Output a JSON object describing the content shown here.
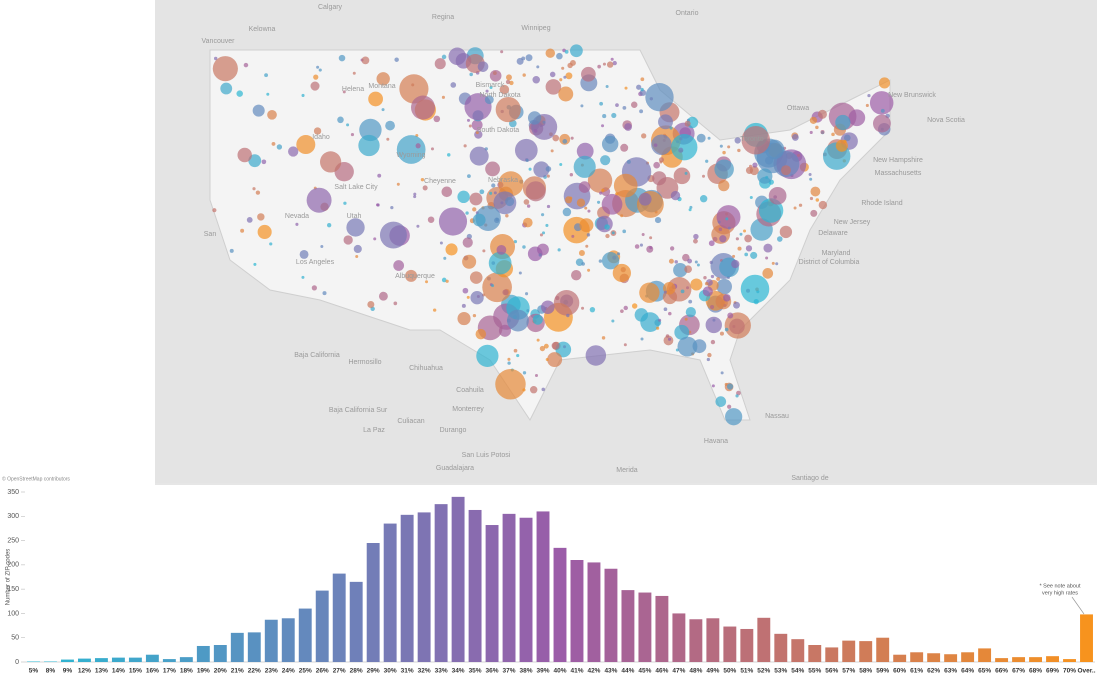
{
  "map": {
    "attribution": "© OpenStreetMap contributors",
    "labels": [
      "Calgary",
      "Regina",
      "Winnipeg",
      "Kelowna",
      "Vancouver",
      "Ontario",
      "Helena",
      "Bismarck",
      "Montana",
      "North Dakota",
      "South Dakota",
      "Idaho",
      "Wyoming",
      "Salt Lake City",
      "Nevada",
      "Utah",
      "Cheyenne",
      "Nebraska",
      "San",
      "Los Angeles",
      "Albuquerque",
      "Ottawa",
      "Toronto",
      "New Brunswick",
      "Nova Scotia",
      "New Hampshire",
      "Massachusetts",
      "Rhode Island",
      "New Jersey",
      "Delaware",
      "Maryland",
      "District of Columbia",
      "Baja California",
      "Hermosillo",
      "Chihuahua",
      "Baja California Sur",
      "Coahuila",
      "Monterrey",
      "Culiacan",
      "La Paz",
      "Durango",
      "San Luis Potosi",
      "Guadalajara",
      "Merida",
      "Havana",
      "Nassau",
      "Santiago de"
    ]
  },
  "chart_data": {
    "type": "bar",
    "y_label": "Number of ZIP codes",
    "annotation": [
      "* See note about",
      "very high rates"
    ],
    "categories": [
      "5%",
      "8%",
      "9%",
      "12%",
      "13%",
      "14%",
      "15%",
      "16%",
      "17%",
      "18%",
      "19%",
      "20%",
      "21%",
      "22%",
      "23%",
      "24%",
      "25%",
      "26%",
      "27%",
      "28%",
      "29%",
      "30%",
      "31%",
      "32%",
      "33%",
      "34%",
      "35%",
      "36%",
      "37%",
      "38%",
      "39%",
      "40%",
      "41%",
      "42%",
      "43%",
      "44%",
      "45%",
      "46%",
      "47%",
      "48%",
      "49%",
      "50%",
      "51%",
      "52%",
      "53%",
      "54%",
      "55%",
      "56%",
      "57%",
      "58%",
      "59%",
      "60%",
      "61%",
      "62%",
      "63%",
      "64%",
      "65%",
      "66%",
      "67%",
      "68%",
      "69%",
      "70%",
      "Over.."
    ],
    "values": [
      1,
      1,
      5,
      7,
      8,
      9,
      9,
      15,
      6,
      10,
      33,
      35,
      60,
      61,
      87,
      90,
      110,
      147,
      182,
      165,
      245,
      285,
      303,
      308,
      325,
      340,
      313,
      282,
      305,
      297,
      310,
      235,
      210,
      205,
      192,
      148,
      143,
      136,
      100,
      88,
      90,
      73,
      68,
      91,
      58,
      47,
      35,
      30,
      44,
      43,
      50,
      15,
      20,
      18,
      16,
      20,
      28,
      8,
      10,
      10,
      12,
      6,
      98
    ],
    "color_stops": [
      "#2ab8d3",
      "#9b5ca8",
      "#f7931e"
    ],
    "ylim": [
      0,
      350
    ],
    "yticks": [
      0,
      50,
      100,
      150,
      200,
      250,
      300,
      350
    ]
  }
}
